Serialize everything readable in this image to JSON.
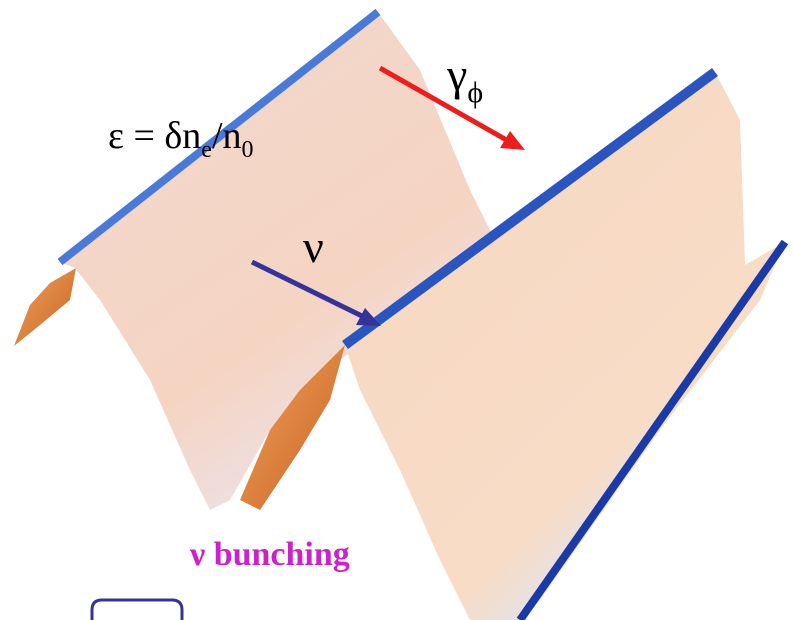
{
  "density_label": {
    "main": "ε = δn",
    "sub1": "e",
    "mid": "/n",
    "sub2": "0"
  },
  "gamma_label": {
    "main": "γ",
    "sub": "ϕ"
  },
  "nu_label": "ν",
  "bunching_label": "ν bunching"
}
